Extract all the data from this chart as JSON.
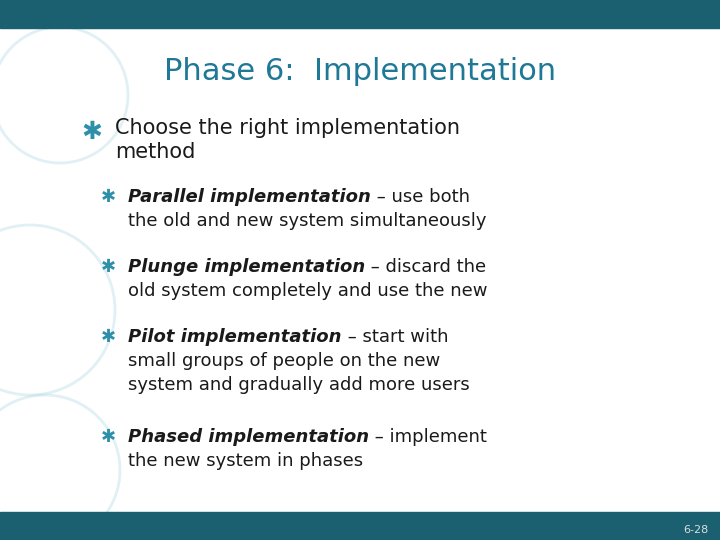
{
  "title": "Phase 6:  Implementation",
  "title_color": "#1e7896",
  "background_color": "#FFFFFF",
  "top_bar_color": "#1a6070",
  "bottom_bar_color": "#1a6070",
  "bullet_color": "#2E8FA8",
  "text_color": "#1a1a1a",
  "slide_number": "6-28",
  "circle_color": "#A8D4E0",
  "circle_alpha": 0.35,
  "level1_text_line1": "Choose the right implementation",
  "level1_text_line2": "method",
  "level2_bullets": [
    {
      "bold": "Parallel implementation",
      "rest": " – use both",
      "cont": "the old and new system simultaneously"
    },
    {
      "bold": "Plunge implementation",
      "rest": " – discard the",
      "cont": "old system completely and use the new"
    },
    {
      "bold": "Pilot implementation",
      "rest": " – start with",
      "cont": "small groups of people on the new\nsystem and gradually add more users"
    },
    {
      "bold": "Phased implementation",
      "rest": " – implement",
      "cont": "the new system in phases"
    }
  ]
}
